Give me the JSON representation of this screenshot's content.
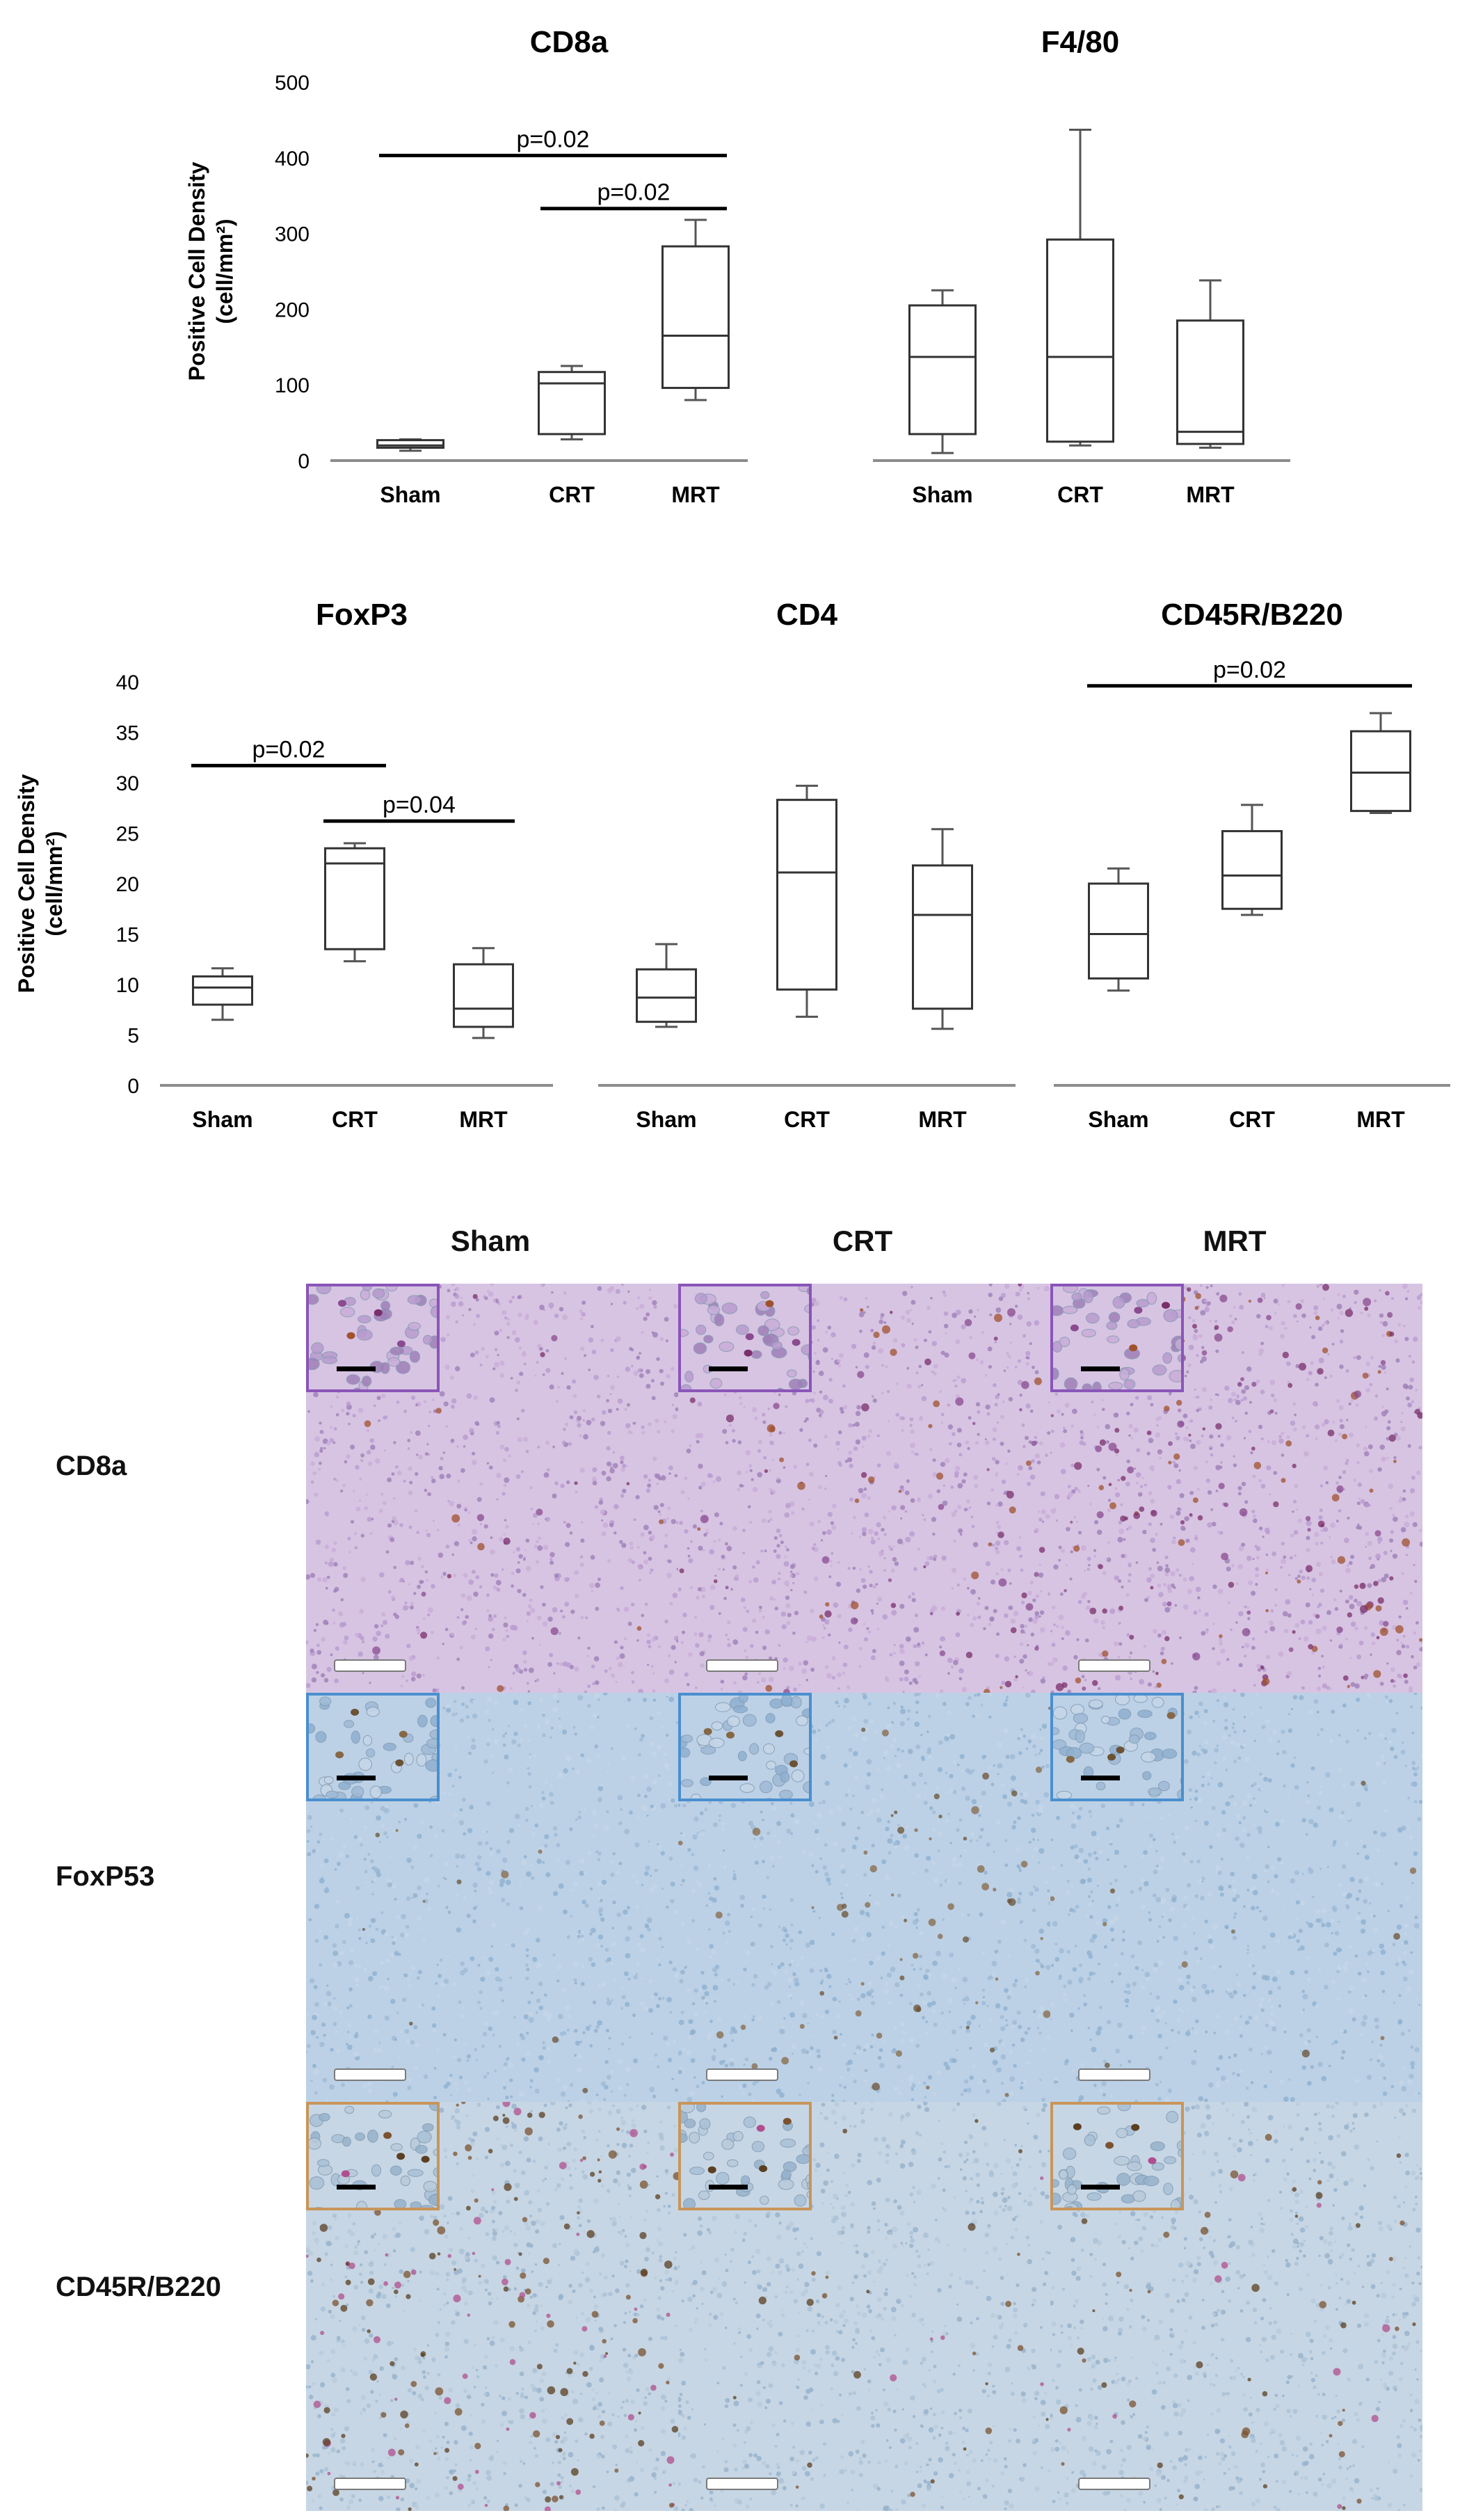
{
  "chart_data": [
    {
      "type": "box",
      "title": "CD8a",
      "ylabel": "Positive Cell Density (cell/mm²)",
      "ylim": [
        0,
        500
      ],
      "yticks": [
        "0",
        "100",
        "200",
        "300",
        "400",
        "500"
      ],
      "categories": [
        "Sham",
        "CRT",
        "MRT"
      ],
      "boxes": [
        {
          "min": 13,
          "q1": 17,
          "median": 20,
          "q3": 27,
          "max": 28
        },
        {
          "min": 28,
          "q1": 35,
          "median": 102,
          "q3": 117,
          "max": 125
        },
        {
          "min": 80,
          "q1": 96,
          "median": 165,
          "q3": 283,
          "max": 318
        }
      ],
      "annotations": [
        {
          "label": "p=0.02",
          "from": 0,
          "to": 2,
          "y": 403
        },
        {
          "label": "p=0.02",
          "from": 1,
          "to": 2,
          "y": 333
        }
      ]
    },
    {
      "type": "box",
      "title": "F4/80",
      "ylim": [
        0,
        500
      ],
      "categories": [
        "Sham",
        "CRT",
        "MRT"
      ],
      "boxes": [
        {
          "min": 10,
          "q1": 35,
          "median": 137,
          "q3": 205,
          "max": 225
        },
        {
          "min": 20,
          "q1": 25,
          "median": 137,
          "q3": 292,
          "max": 437
        },
        {
          "min": 17,
          "q1": 22,
          "median": 38,
          "q3": 185,
          "max": 238
        }
      ],
      "annotations": []
    },
    {
      "type": "box",
      "title": "FoxP3",
      "ylabel": "Positive Cell Density (cell/mm²)",
      "ylim": [
        0,
        40
      ],
      "yticks": [
        "0",
        "5",
        "10",
        "15",
        "20",
        "25",
        "30",
        "35",
        "40"
      ],
      "categories": [
        "Sham",
        "CRT",
        "MRT"
      ],
      "boxes": [
        {
          "min": 6.5,
          "q1": 8,
          "median": 9.7,
          "q3": 10.8,
          "max": 11.6
        },
        {
          "min": 12.3,
          "q1": 13.5,
          "median": 22,
          "q3": 23.5,
          "max": 24
        },
        {
          "min": 4.7,
          "q1": 5.8,
          "median": 7.6,
          "q3": 12,
          "max": 13.6
        }
      ],
      "annotations": [
        {
          "label": "p=0.02",
          "from": 0,
          "to": 1,
          "y": 31.7
        },
        {
          "label": "p=0.04",
          "from": 1,
          "to": 2,
          "y": 26.2
        }
      ]
    },
    {
      "type": "box",
      "title": "CD4",
      "ylim": [
        0,
        40
      ],
      "categories": [
        "Sham",
        "CRT",
        "MRT"
      ],
      "boxes": [
        {
          "min": 5.8,
          "q1": 6.3,
          "median": 8.7,
          "q3": 11.5,
          "max": 14
        },
        {
          "min": 6.8,
          "q1": 9.5,
          "median": 21.1,
          "q3": 28.3,
          "max": 29.7
        },
        {
          "min": 5.6,
          "q1": 7.6,
          "median": 16.9,
          "q3": 21.8,
          "max": 25.4
        }
      ],
      "annotations": []
    },
    {
      "type": "box",
      "title": "CD45R/B220",
      "ylim": [
        0,
        40
      ],
      "categories": [
        "Sham",
        "CRT",
        "MRT"
      ],
      "boxes": [
        {
          "min": 9.4,
          "q1": 10.6,
          "median": 15,
          "q3": 20,
          "max": 21.5
        },
        {
          "min": 16.9,
          "q1": 17.5,
          "median": 20.8,
          "q3": 25.2,
          "max": 27.8
        },
        {
          "min": 27,
          "q1": 27.2,
          "median": 31,
          "q3": 35.1,
          "max": 36.9
        }
      ],
      "annotations": [
        {
          "label": "p=0.02",
          "from": 0,
          "to": 2,
          "y": 39.6
        }
      ]
    }
  ],
  "micrographs": {
    "columns": [
      "Sham",
      "CRT",
      "MRT"
    ],
    "rows": [
      "CD8a",
      "FoxP53",
      "CD45R/B220"
    ],
    "border_colors": [
      "#8a55b8",
      "#4a8fcf",
      "#c8955a"
    ]
  }
}
